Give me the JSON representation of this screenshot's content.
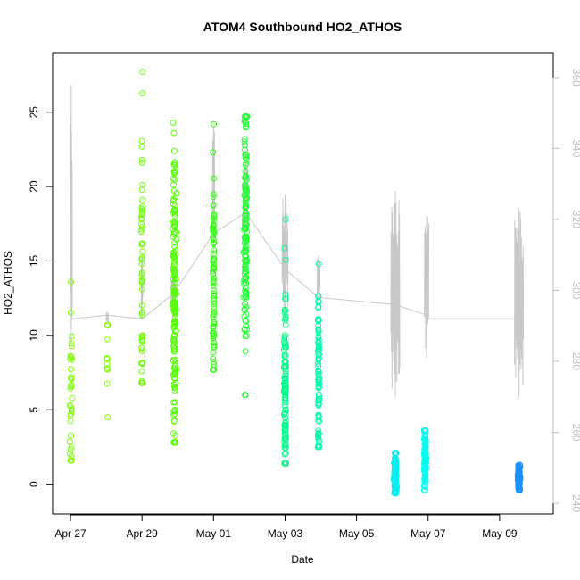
{
  "chart_data": {
    "type": "scatter",
    "title": "ATOM4 Southbound HO2_ATHOS",
    "xlabel": "Date",
    "ylabel": "HO2_ATHOS",
    "x_range": [
      "2016-04-26T12:00",
      "2016-05-10T12:00"
    ],
    "ylim": [
      -2,
      29
    ],
    "y_ticks": [
      0,
      5,
      10,
      15,
      20,
      25
    ],
    "y2lim": [
      237,
      367
    ],
    "y2_ticks": [
      240,
      260,
      280,
      300,
      320,
      340,
      360
    ],
    "y2_tick_color": "#bdbdbd",
    "x_ticks": [
      {
        "date": "2016-04-27",
        "label": "Apr 27"
      },
      {
        "date": "2016-04-29",
        "label": "Apr 29"
      },
      {
        "date": "2016-05-01",
        "label": "May 01"
      },
      {
        "date": "2016-05-03",
        "label": "May 03"
      },
      {
        "date": "2016-05-05",
        "label": "May 05"
      },
      {
        "date": "2016-05-07",
        "label": "May 07"
      },
      {
        "date": "2016-05-09",
        "label": "May 09"
      }
    ],
    "marker": "open-circle",
    "series_line_color": "#c8c8c8",
    "clusters": [
      {
        "date": "2016-04-27T00:30",
        "min": 1.6,
        "max": 13.6,
        "center": 5.5,
        "spread": 0.12,
        "n": 40,
        "color": "#7fff00"
      },
      {
        "date": "2016-04-28T00:40",
        "min": 4.5,
        "max": 10.7,
        "center": 8.0,
        "spread": 0.05,
        "n": 14,
        "color": "#7fff00"
      },
      {
        "date": "2016-04-29T00:00",
        "min": 6.8,
        "max": 27.7,
        "center": 13.0,
        "spread": 0.08,
        "n": 60,
        "color": "#6cff00"
      },
      {
        "date": "2016-04-29T21:50",
        "min": 2.8,
        "max": 24.3,
        "center": 12.0,
        "spread": 0.18,
        "n": 160,
        "color": "#55ff00"
      },
      {
        "date": "2016-05-01T00:00",
        "min": 7.7,
        "max": 24.2,
        "center": 13.0,
        "spread": 0.08,
        "n": 90,
        "color": "#33ff11"
      },
      {
        "date": "2016-05-01T21:30",
        "min": 6.0,
        "max": 24.7,
        "center": 17.0,
        "spread": 0.15,
        "n": 150,
        "color": "#22ff33"
      },
      {
        "date": "2016-05-03T00:00",
        "min": 1.4,
        "max": 17.8,
        "center": 5.5,
        "spread": 0.1,
        "n": 130,
        "color": "#00ff88"
      },
      {
        "date": "2016-05-03T22:30",
        "min": 2.5,
        "max": 14.8,
        "center": 7.0,
        "spread": 0.06,
        "n": 90,
        "color": "#00ffaa"
      },
      {
        "date": "2016-05-06T02:00",
        "min": -0.6,
        "max": 2.1,
        "center": 0.6,
        "spread": 0.12,
        "n": 160,
        "color": "#00eeee"
      },
      {
        "date": "2016-05-06T22:00",
        "min": -0.4,
        "max": 3.6,
        "center": 1.8,
        "spread": 0.12,
        "n": 120,
        "color": "#00ffee"
      },
      {
        "date": "2016-05-09T13:00",
        "min": -0.4,
        "max": 1.3,
        "center": 0.4,
        "spread": 0.12,
        "n": 110,
        "color": "#1e90ff"
      }
    ],
    "line_path": [
      {
        "date": "2016-04-27T00:30",
        "y2": 289
      },
      {
        "date": "2016-04-27T00:30",
        "y2": 292
      },
      {
        "date": "2016-04-28T00:40",
        "y2": 293
      },
      {
        "date": "2016-04-29T00:00",
        "y2": 292
      },
      {
        "date": "2016-04-29T21:00",
        "y2": 299
      },
      {
        "date": "2016-05-01T00:00",
        "y2": 316
      },
      {
        "date": "2016-05-01T21:30",
        "y2": 322
      },
      {
        "date": "2016-05-03T00:00",
        "y2": 306
      },
      {
        "date": "2016-05-03T22:30",
        "y2": 298
      },
      {
        "date": "2016-05-06T02:00",
        "y2": 296
      },
      {
        "date": "2016-05-06T23:00",
        "y2": 293
      },
      {
        "date": "2016-05-06T23:00",
        "y2": 292
      },
      {
        "date": "2016-05-09T13:00",
        "y2": 292
      }
    ],
    "line_bursts": [
      {
        "date": "2016-04-27T00:30",
        "width_hours": 1.5,
        "min": 285,
        "max": 358
      },
      {
        "date": "2016-04-28T00:40",
        "width_hours": 1.5,
        "min": 291,
        "max": 294
      },
      {
        "date": "2016-04-29T00:00",
        "width_hours": 1.0,
        "min": 292,
        "max": 310
      },
      {
        "date": "2016-04-29T21:00",
        "width_hours": 3,
        "min": 294,
        "max": 306
      },
      {
        "date": "2016-05-01T00:00",
        "width_hours": 1.5,
        "min": 310,
        "max": 346
      },
      {
        "date": "2016-05-01T21:30",
        "width_hours": 3,
        "min": 316,
        "max": 340
      },
      {
        "date": "2016-05-03T00:00",
        "width_hours": 4,
        "min": 292,
        "max": 327
      },
      {
        "date": "2016-05-03T22:30",
        "width_hours": 2,
        "min": 296,
        "max": 310
      },
      {
        "date": "2016-05-06T02:00",
        "width_hours": 6,
        "min": 270,
        "max": 328
      },
      {
        "date": "2016-05-06T23:00",
        "width_hours": 3,
        "min": 281,
        "max": 321
      },
      {
        "date": "2016-05-09T13:00",
        "width_hours": 6,
        "min": 270,
        "max": 323
      }
    ]
  }
}
